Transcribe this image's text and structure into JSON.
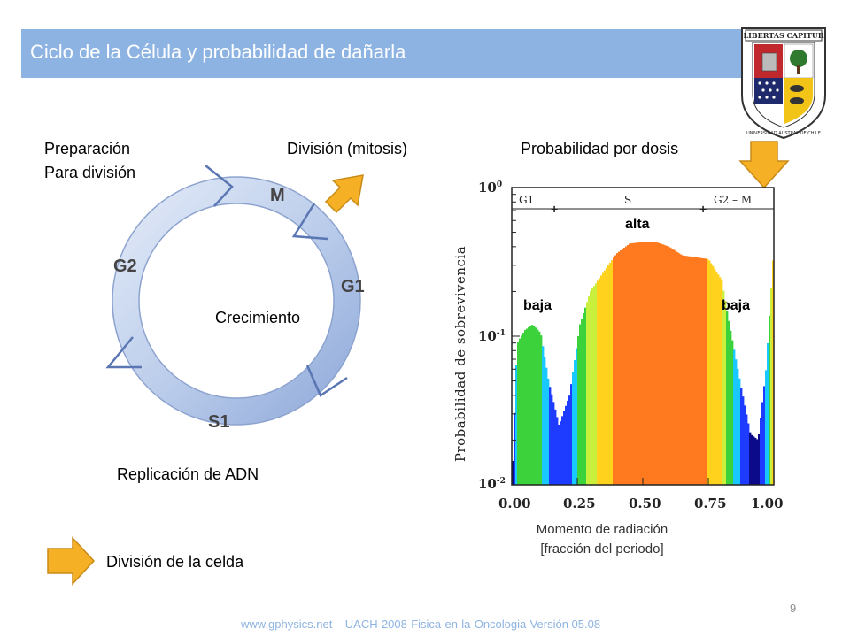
{
  "slide": {
    "title": "Ciclo de la Célula y probabilidad de dañarla",
    "page_number": "9",
    "footer": "www.gphysics.net – UACH-2008-Fisica-en-la-Oncologia-Versión 05.08"
  },
  "logo": {
    "banner": "LIBERTAS CAPITUR",
    "ring_text": "UNIVERSIDAD AUSTRAL DE CHILE"
  },
  "cell_cycle": {
    "label_prep_line1": "Preparación",
    "label_prep_line2": "Para división",
    "label_division": "División (mitosis)",
    "label_growth": "Crecimiento",
    "label_replication": "Replicación de ADN",
    "phases": [
      "M",
      "G1",
      "S1",
      "G2"
    ]
  },
  "legend": {
    "arrow_label": "División de la celda",
    "arrow_color": "#f5b025"
  },
  "dose_chart": {
    "title": "Probabilidad por dosis",
    "xlabel_line1": "Momento de radiación",
    "xlabel_line2": "[fracción del periodo]",
    "ylabel": "Probabilidad de sobrevivencia",
    "phase_marks": [
      "G1",
      "S",
      "G2 – M"
    ],
    "annotations": {
      "low_left": "baja",
      "high": "alta",
      "low_right": "baja"
    },
    "x_ticks": [
      "0.00",
      "0.25",
      "0.50",
      "0.75",
      "1.00"
    ],
    "y_ticks": {
      "top_base": "10",
      "top_exp": "0",
      "mid_base": "10",
      "mid_exp": "-1",
      "bot_base": "10",
      "bot_exp": "-2"
    }
  },
  "chart_data": {
    "type": "area",
    "title": "Probabilidad por dosis",
    "xlabel": "Momento de radiación [fracción del periodo]",
    "ylabel": "Probabilidad de sobrevivencia",
    "y_scale": "log",
    "xlim": [
      0,
      1
    ],
    "ylim": [
      0.01,
      1
    ],
    "x": [
      0.0,
      0.02,
      0.05,
      0.08,
      0.11,
      0.14,
      0.18,
      0.22,
      0.26,
      0.3,
      0.35,
      0.4,
      0.45,
      0.5,
      0.55,
      0.6,
      0.65,
      0.7,
      0.75,
      0.8,
      0.83,
      0.87,
      0.91,
      0.94,
      0.97,
      1.0
    ],
    "y": [
      0.01,
      0.09,
      0.11,
      0.12,
      0.105,
      0.05,
      0.025,
      0.04,
      0.12,
      0.2,
      0.27,
      0.36,
      0.42,
      0.43,
      0.43,
      0.4,
      0.35,
      0.34,
      0.33,
      0.24,
      0.12,
      0.05,
      0.022,
      0.02,
      0.06,
      0.4
    ],
    "phases": [
      "G1",
      "S",
      "G2 – M"
    ],
    "annotations": [
      "baja",
      "alta",
      "baja"
    ]
  }
}
